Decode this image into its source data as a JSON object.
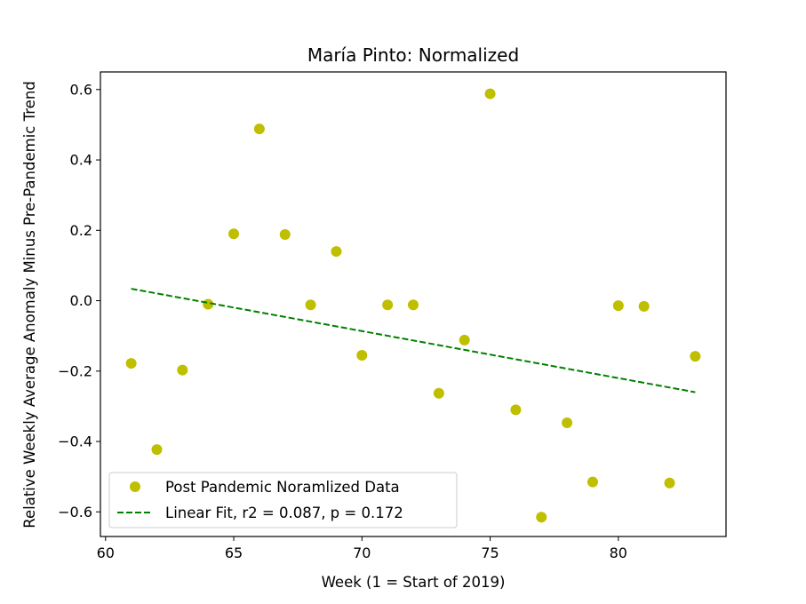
{
  "chart_data": {
    "type": "scatter",
    "title": "María Pinto: Normalized",
    "xlabel": "Week (1 = Start of 2019)",
    "ylabel": "Relative Weekly Average Anomaly Minus Pre-Pandemic Trend",
    "xlim": [
      59.8,
      84.2
    ],
    "ylim": [
      -0.67,
      0.65
    ],
    "xticks": [
      60,
      65,
      70,
      75,
      80
    ],
    "yticks": [
      -0.6,
      -0.4,
      -0.2,
      0.0,
      0.2,
      0.4,
      0.6
    ],
    "xtick_labels": [
      "60",
      "65",
      "70",
      "75",
      "80"
    ],
    "ytick_labels": [
      "−0.6",
      "−0.4",
      "−0.2",
      "0.0",
      "0.2",
      "0.4",
      "0.6"
    ],
    "grid": false,
    "legend_position": "lower-left",
    "series": [
      {
        "name": "Post Pandemic Noramlized Data",
        "kind": "scatter",
        "color": "#bfbf00",
        "x": [
          61,
          62,
          63,
          64,
          65,
          66,
          67,
          68,
          69,
          70,
          71,
          72,
          73,
          74,
          75,
          76,
          77,
          78,
          79,
          80,
          81,
          82,
          83
        ],
        "y": [
          -0.178,
          -0.423,
          -0.197,
          -0.01,
          0.19,
          0.488,
          0.188,
          -0.012,
          0.14,
          -0.155,
          -0.012,
          -0.012,
          -0.263,
          -0.112,
          0.588,
          -0.31,
          -0.615,
          -0.347,
          -0.515,
          -0.014,
          -0.016,
          -0.518,
          -0.158
        ]
      },
      {
        "name": "Linear Fit, r2 = 0.087, p = 0.172",
        "kind": "line",
        "style": "dashed",
        "color": "#008000",
        "x": [
          61,
          83
        ],
        "y": [
          0.034,
          -0.26
        ]
      }
    ]
  }
}
